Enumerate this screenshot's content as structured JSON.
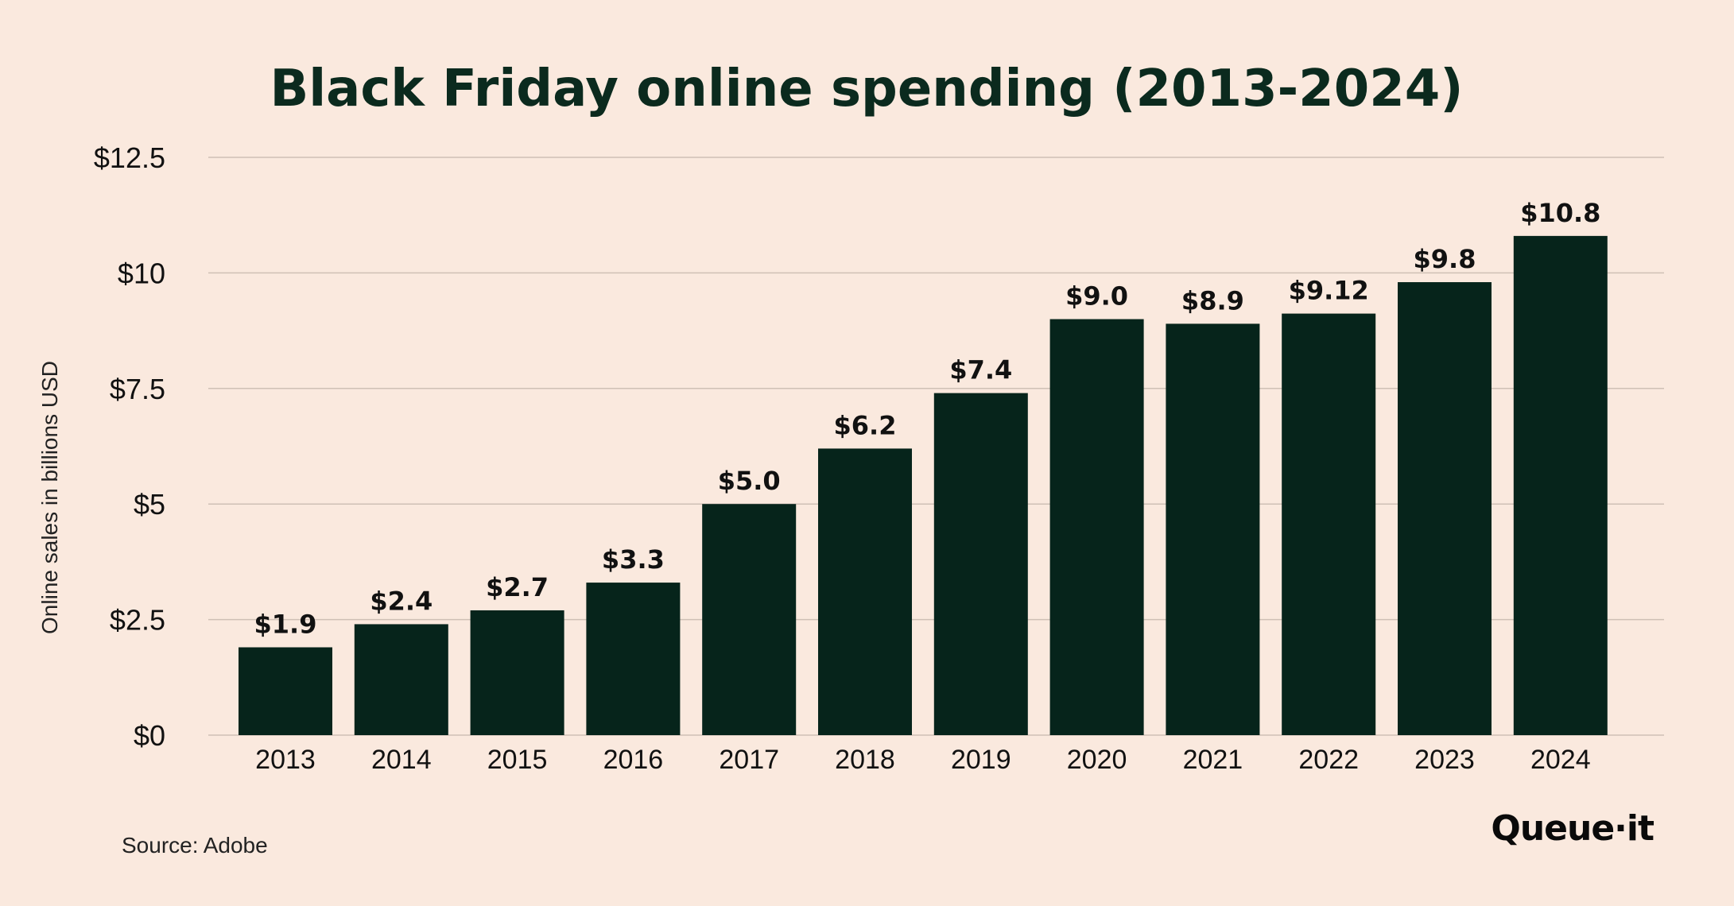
{
  "chart_data": {
    "type": "bar",
    "title": "Black Friday online spending (2013-2024)",
    "xlabel": "",
    "ylabel": "Online sales in billions USD",
    "categories": [
      "2013",
      "2014",
      "2015",
      "2016",
      "2017",
      "2018",
      "2019",
      "2020",
      "2021",
      "2022",
      "2023",
      "2024"
    ],
    "values": [
      1.9,
      2.4,
      2.7,
      3.3,
      5.0,
      6.2,
      7.4,
      9.0,
      8.9,
      9.12,
      9.8,
      10.8
    ],
    "data_labels": [
      "$1.9",
      "$2.4",
      "$2.7",
      "$3.3",
      "$5.0",
      "$6.2",
      "$7.4",
      "$9.0",
      "$8.9",
      "$9.12",
      "$9.8",
      "$10.8"
    ],
    "ylim": [
      0,
      12.5
    ],
    "yticks": [
      0,
      2.5,
      5,
      7.5,
      10,
      12.5
    ],
    "ytick_labels": [
      "$0",
      "$2.5",
      "$5",
      "$7.5",
      "$10",
      "$12.5"
    ],
    "grid": true,
    "legend": "none",
    "colors": {
      "bar": "#06241b",
      "background": "#fae9de",
      "grid": "#cfc0b5",
      "title": "#0b2a1e"
    }
  },
  "footer": {
    "source": "Source: Adobe",
    "logo": "Queue·it"
  }
}
